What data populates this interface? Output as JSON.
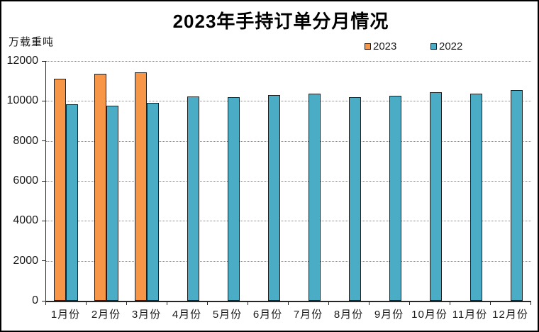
{
  "title": "2023年手持订单分月情况",
  "y_axis_unit": "万载重吨",
  "colors": {
    "series_2023": "#F79646",
    "series_2022": "#4BACC6",
    "bar_border": "#1F1F1F",
    "gridline": "#858585",
    "axis": "#262626",
    "background": "#FFFFFF",
    "frame_border": "#000000"
  },
  "chart_data": {
    "type": "bar",
    "title": "2023年手持订单分月情况",
    "xlabel": "",
    "ylabel": "万载重吨",
    "categories": [
      "1月份",
      "2月份",
      "3月份",
      "4月份",
      "5月份",
      "6月份",
      "7月份",
      "8月份",
      "9月份",
      "10月份",
      "11月份",
      "12月份"
    ],
    "series": [
      {
        "name": "2023",
        "color": "#F79646",
        "values": [
          11100,
          11350,
          11450,
          null,
          null,
          null,
          null,
          null,
          null,
          null,
          null,
          null
        ]
      },
      {
        "name": "2022",
        "color": "#4BACC6",
        "values": [
          9850,
          9750,
          9900,
          10225,
          10175,
          10300,
          10375,
          10200,
          10250,
          10450,
          10375,
          10550
        ]
      }
    ],
    "ylim": [
      0,
      12000
    ],
    "yticks": [
      0,
      2000,
      4000,
      6000,
      8000,
      10000,
      12000
    ],
    "grid": "horizontal-dotted",
    "legend_position": "top-right"
  }
}
